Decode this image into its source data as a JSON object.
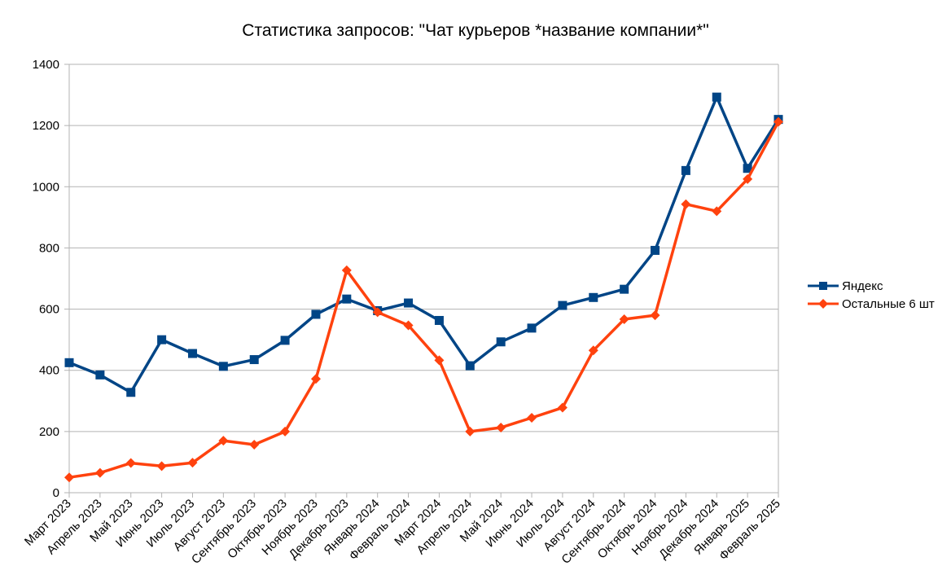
{
  "chart_data": {
    "type": "line",
    "title": "Статистика запросов: \"Чат курьеров *название компании*\"",
    "xlabel": "",
    "ylabel": "",
    "ylim": [
      0,
      1400
    ],
    "yticks": [
      0,
      200,
      400,
      600,
      800,
      1000,
      1200,
      1400
    ],
    "grid": "horizontal",
    "legend_position": "right",
    "categories": [
      "Март 2023",
      "Апрель 2023",
      "Май 2023",
      "Июнь 2023",
      "Июль 2023",
      "Август 2023",
      "Сентябрь 2023",
      "Октябрь 2023",
      "Ноябрь 2023",
      "Декабрь 2023",
      "Январь 2024",
      "Февраль 2024",
      "Март 2024",
      "Апрель 2024",
      "Май 2024",
      "Июнь 2024",
      "Июль 2024",
      "Август 2024",
      "Сентябрь 2024",
      "Октябрь 2024",
      "Ноябрь 2024",
      "Декабрь 2024",
      "Январь 2025",
      "Февраль 2025"
    ],
    "series": [
      {
        "name": "Яндекс",
        "color": "#004586",
        "marker": "square",
        "values": [
          425,
          385,
          328,
          500,
          455,
          413,
          435,
          498,
          583,
          633,
          595,
          620,
          563,
          415,
          493,
          538,
          612,
          638,
          665,
          792,
          1053,
          1293,
          1060,
          1220
        ]
      },
      {
        "name": "Остальные 6 шт",
        "color": "#ff420e",
        "marker": "diamond",
        "values": [
          50,
          65,
          97,
          87,
          98,
          170,
          157,
          200,
          372,
          727,
          590,
          547,
          433,
          200,
          213,
          245,
          278,
          465,
          567,
          580,
          943,
          920,
          1025,
          1212
        ]
      }
    ]
  }
}
